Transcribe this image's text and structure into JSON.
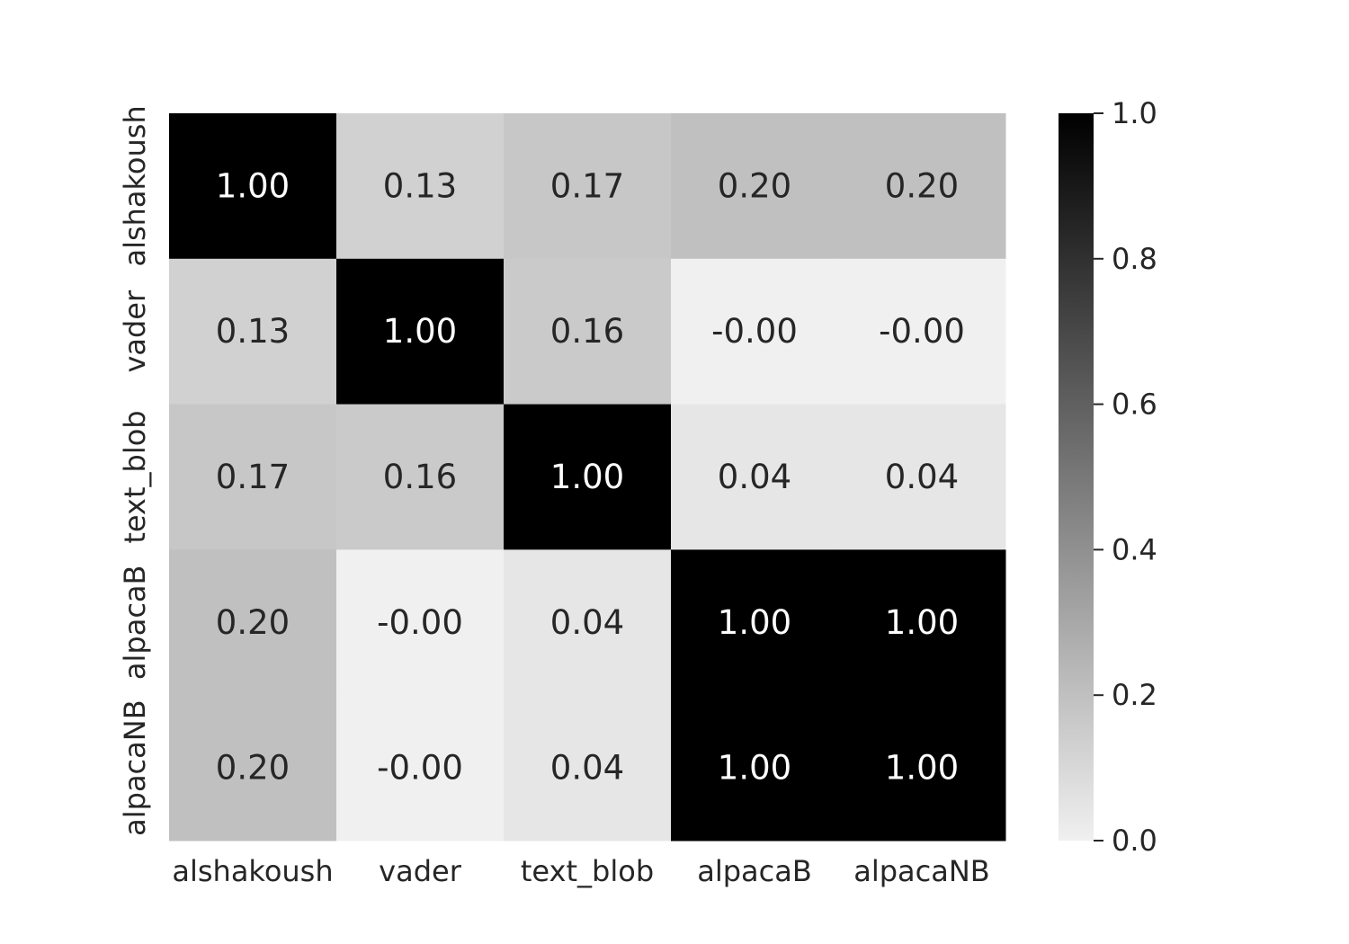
{
  "chart_data": {
    "type": "heatmap",
    "title": "",
    "xlabel": "",
    "ylabel": "",
    "x_categories": [
      "alshakoush",
      "vader",
      "text_blob",
      "alpacaB",
      "alpacaNB"
    ],
    "y_categories": [
      "alshakoush",
      "vader",
      "text_blob",
      "alpacaB",
      "alpacaNB"
    ],
    "values": [
      [
        1.0,
        0.13,
        0.17,
        0.2,
        0.2
      ],
      [
        0.13,
        1.0,
        0.16,
        -0.0,
        -0.0
      ],
      [
        0.17,
        0.16,
        1.0,
        0.04,
        0.04
      ],
      [
        0.2,
        -0.0,
        0.04,
        1.0,
        1.0
      ],
      [
        0.2,
        -0.0,
        0.04,
        1.0,
        1.0
      ]
    ],
    "annotations": [
      [
        "1.00",
        "0.13",
        "0.17",
        "0.20",
        "0.20"
      ],
      [
        "0.13",
        "1.00",
        "0.16",
        "-0.00",
        "-0.00"
      ],
      [
        "0.17",
        "0.16",
        "1.00",
        "0.04",
        "0.04"
      ],
      [
        "0.20",
        "-0.00",
        "0.04",
        "1.00",
        "1.00"
      ],
      [
        "0.20",
        "-0.00",
        "0.04",
        "1.00",
        "1.00"
      ]
    ],
    "colormap": "gray_r",
    "vmin": 0.0,
    "vmax": 1.0,
    "colorbar": {
      "ticks": [
        0.0,
        0.2,
        0.4,
        0.6,
        0.8,
        1.0
      ],
      "tick_labels": [
        "0.0",
        "0.2",
        "0.4",
        "0.6",
        "0.8",
        "1.0"
      ],
      "placement": "right"
    },
    "colors": {
      "low": "#f0f0f0",
      "high": "#000000",
      "text_dark": "#262626",
      "text_light": "#ffffff"
    }
  }
}
